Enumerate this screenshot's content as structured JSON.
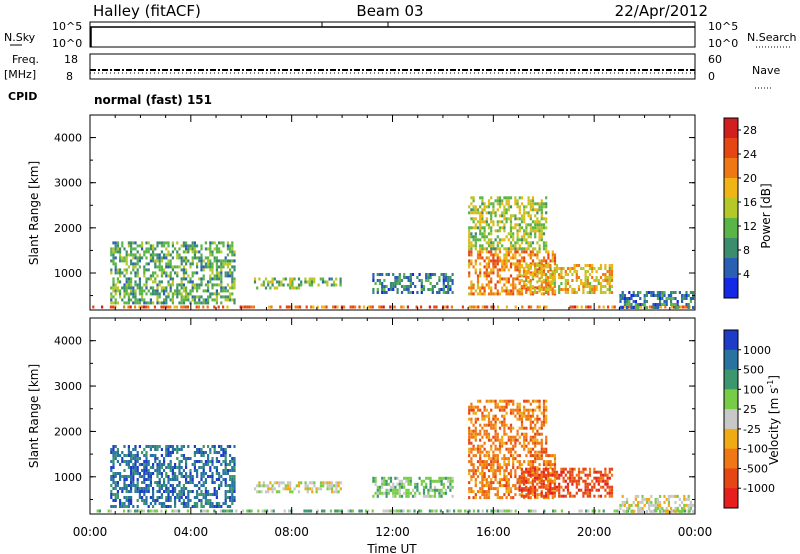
{
  "header": {
    "station": "Halley (fitACF)",
    "beam": "Beam 03",
    "date": "22/Apr/2012"
  },
  "status_panels": {
    "nsky_label": "N.Sky",
    "nsky_ticks": [
      "10^5",
      "10^0"
    ],
    "nsearch_label": "N.Search",
    "nsearch_ticks": [
      "10^5",
      "10^0"
    ],
    "freq_label": "Freq.",
    "freq_unit": "[MHz]",
    "freq_ticks": [
      "18",
      "8"
    ],
    "nave_label": "Nave",
    "nave_ticks": [
      "60",
      "0"
    ],
    "cpid_label": "CPID",
    "cpid_value": "normal (fast) 151"
  },
  "chart_data": [
    {
      "type": "heatmap",
      "name": "power",
      "ylabel": "Slant Range [km]",
      "xlabel": "Time UT",
      "x_ticks": [
        "00:00",
        "04:00",
        "08:00",
        "12:00",
        "16:00",
        "20:00",
        "00:00"
      ],
      "xlim_hours": [
        0,
        24
      ],
      "y_ticks": [
        "1000",
        "2000",
        "3000",
        "4000"
      ],
      "ylim": [
        180,
        4500
      ],
      "colorbar_label": "Power [dB]",
      "colorbar_ticks": [
        "4",
        "8",
        "12",
        "16",
        "20",
        "24",
        "28"
      ],
      "colorbar_range": [
        0,
        30
      ],
      "colors": [
        "#1428e6",
        "#2a5fb4",
        "#3c8c6e",
        "#5ab446",
        "#b4c828",
        "#f0b414",
        "#f07814",
        "#e64614",
        "#d21e1e"
      ],
      "patches": [
        {
          "t0": 0.0,
          "t1": 24.0,
          "r0": 180,
          "r1": 280,
          "level": 24
        },
        {
          "t0": 0.8,
          "t1": 5.8,
          "r0": 300,
          "r1": 1700,
          "level": 10
        },
        {
          "t0": 6.5,
          "t1": 8.5,
          "r0": 600,
          "r1": 900,
          "level": 12
        },
        {
          "t0": 8.5,
          "t1": 10.0,
          "r0": 700,
          "r1": 900,
          "level": 10
        },
        {
          "t0": 11.2,
          "t1": 14.5,
          "r0": 500,
          "r1": 1000,
          "level": 6
        },
        {
          "t0": 15.0,
          "t1": 18.2,
          "r0": 1500,
          "r1": 2700,
          "level": 14
        },
        {
          "t0": 15.0,
          "t1": 18.5,
          "r0": 500,
          "r1": 1500,
          "level": 22
        },
        {
          "t0": 17.0,
          "t1": 20.8,
          "r0": 500,
          "r1": 1200,
          "level": 18
        },
        {
          "t0": 21.0,
          "t1": 24.0,
          "r0": 200,
          "r1": 600,
          "level": 6
        }
      ]
    },
    {
      "type": "heatmap",
      "name": "velocity",
      "ylabel": "Slant Range [km]",
      "xlabel": "Time UT",
      "x_ticks": [
        "00:00",
        "04:00",
        "08:00",
        "12:00",
        "16:00",
        "20:00",
        "00:00"
      ],
      "xlim_hours": [
        0,
        24
      ],
      "y_ticks": [
        "1000",
        "2000",
        "3000",
        "4000"
      ],
      "ylim": [
        180,
        4500
      ],
      "colorbar_label": "Velocity [m s^-1]",
      "colorbar_ticks": [
        "1000",
        "500",
        "100",
        "25",
        "-25",
        "-100",
        "-500",
        "-1000"
      ],
      "colors": [
        "#1e3cc8",
        "#2873a0",
        "#3c966e",
        "#78cd46",
        "#c8c8c8",
        "#f0aa14",
        "#f07814",
        "#e64614",
        "#e61e1e"
      ],
      "patches": [
        {
          "t0": 0.0,
          "t1": 24.0,
          "r0": 180,
          "r1": 280,
          "level": 3
        },
        {
          "t0": 0.8,
          "t1": 5.8,
          "r0": 300,
          "r1": 1700,
          "level": 1
        },
        {
          "t0": 6.5,
          "t1": 10.0,
          "r0": 600,
          "r1": 900,
          "level": 4
        },
        {
          "t0": 11.2,
          "t1": 14.5,
          "r0": 500,
          "r1": 1000,
          "level": 3
        },
        {
          "t0": 15.0,
          "t1": 18.2,
          "r0": 1500,
          "r1": 2700,
          "level": 6
        },
        {
          "t0": 15.0,
          "t1": 18.5,
          "r0": 500,
          "r1": 1500,
          "level": 6
        },
        {
          "t0": 17.0,
          "t1": 20.8,
          "r0": 500,
          "r1": 1200,
          "level": 7
        },
        {
          "t0": 21.0,
          "t1": 24.0,
          "r0": 200,
          "r1": 600,
          "level": 4
        }
      ]
    }
  ]
}
